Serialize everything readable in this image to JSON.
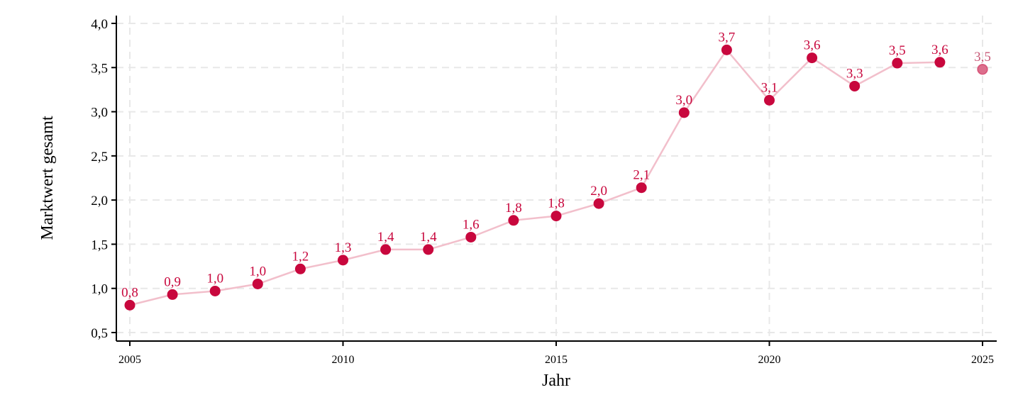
{
  "chart_data": {
    "type": "line",
    "xlabel": "Jahr",
    "ylabel": "Marktwert gesamt",
    "xlim": [
      2005,
      2025
    ],
    "ylim": [
      0.5,
      4.0
    ],
    "x_ticks": [
      2005,
      2010,
      2015,
      2020,
      2025
    ],
    "x_tick_labels": [
      "2005",
      "2010",
      "2015",
      "2020",
      "2025"
    ],
    "y_ticks": [
      0.5,
      1.0,
      1.5,
      2.0,
      2.5,
      3.0,
      3.5,
      4.0
    ],
    "y_tick_labels": [
      "0,5",
      "1,0",
      "1,5",
      "2,0",
      "2,5",
      "3,0",
      "3,5",
      "4,0"
    ],
    "grid": true,
    "legend": "none",
    "colors": {
      "marker": "#c8073d",
      "line": "#f2bfcb",
      "label": "#c8073d",
      "projected_marker": "#dc6e8c",
      "projected_label": "#c85a78",
      "grid": "#e8e8e8",
      "axis": "#000000"
    },
    "series": [
      {
        "points": [
          {
            "x": 2005,
            "y": 0.81,
            "label": "0,8"
          },
          {
            "x": 2006,
            "y": 0.93,
            "label": "0,9"
          },
          {
            "x": 2007,
            "y": 0.97,
            "label": "1,0"
          },
          {
            "x": 2008,
            "y": 1.05,
            "label": "1,0"
          },
          {
            "x": 2009,
            "y": 1.22,
            "label": "1,2"
          },
          {
            "x": 2010,
            "y": 1.32,
            "label": "1,3"
          },
          {
            "x": 2011,
            "y": 1.44,
            "label": "1,4"
          },
          {
            "x": 2012,
            "y": 1.44,
            "label": "1,4"
          },
          {
            "x": 2013,
            "y": 1.58,
            "label": "1,6"
          },
          {
            "x": 2014,
            "y": 1.77,
            "label": "1,8"
          },
          {
            "x": 2015,
            "y": 1.82,
            "label": "1,8"
          },
          {
            "x": 2016,
            "y": 1.96,
            "label": "2,0"
          },
          {
            "x": 2017,
            "y": 2.14,
            "label": "2,1"
          },
          {
            "x": 2018,
            "y": 2.99,
            "label": "3,0"
          },
          {
            "x": 2019,
            "y": 3.7,
            "label": "3,7"
          },
          {
            "x": 2020,
            "y": 3.13,
            "label": "3,1"
          },
          {
            "x": 2021,
            "y": 3.61,
            "label": "3,6"
          },
          {
            "x": 2022,
            "y": 3.29,
            "label": "3,3"
          },
          {
            "x": 2023,
            "y": 3.55,
            "label": "3,5"
          },
          {
            "x": 2024,
            "y": 3.56,
            "label": "3,6"
          }
        ],
        "projected": {
          "x": 2025,
          "y": 3.48,
          "label": "3,5"
        }
      }
    ]
  }
}
